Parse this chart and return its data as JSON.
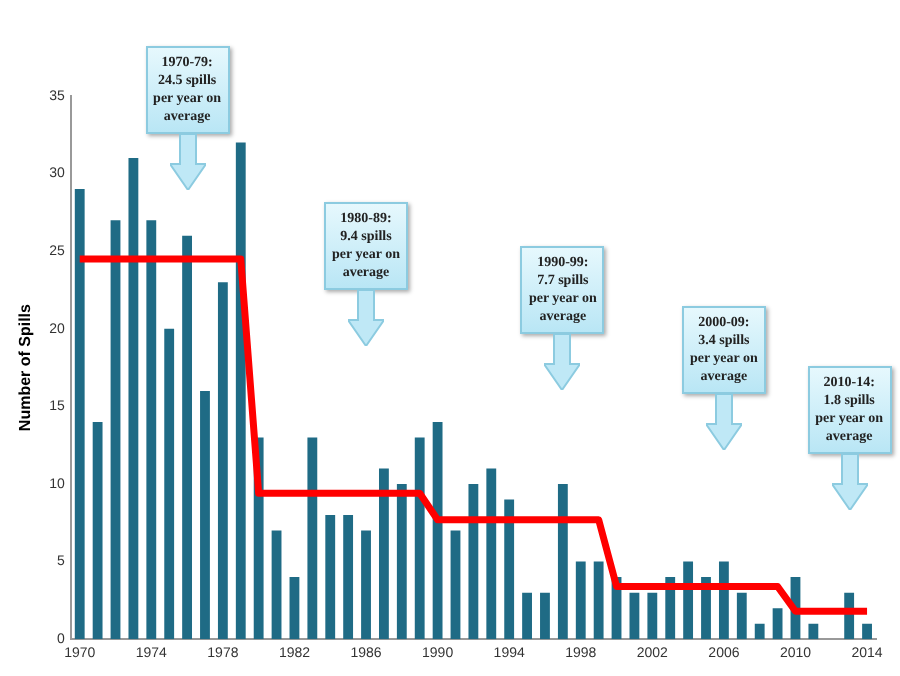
{
  "chart_data": {
    "type": "bar",
    "ylabel": "Number of Spills",
    "categories": [
      "1970",
      null,
      null,
      null,
      "1974",
      null,
      null,
      null,
      "1978",
      null,
      null,
      null,
      "1982",
      null,
      null,
      null,
      "1986",
      null,
      null,
      null,
      "1990",
      null,
      null,
      null,
      "1994",
      null,
      null,
      null,
      "1998",
      null,
      null,
      null,
      "2002",
      null,
      null,
      null,
      "2006",
      null,
      null,
      null,
      "2010",
      null,
      null,
      null,
      "2014"
    ],
    "series": [
      {
        "color": "#1f6b85",
        "values": [
          29,
          14,
          27,
          31,
          27,
          20,
          26,
          16,
          23,
          32,
          13,
          7,
          4,
          13,
          8,
          8,
          7,
          11,
          10,
          13,
          14,
          7,
          10,
          11,
          9,
          3,
          3,
          10,
          5,
          5,
          4,
          3,
          3,
          4,
          5,
          4,
          5,
          3,
          1,
          2,
          4,
          1,
          0,
          3,
          1
        ]
      },
      {
        "type": "line",
        "color": "#ff0000",
        "values": [
          24.5,
          24.5,
          24.5,
          24.5,
          24.5,
          24.5,
          24.5,
          24.5,
          24.5,
          24.5,
          9.4,
          9.4,
          9.4,
          9.4,
          9.4,
          9.4,
          9.4,
          9.4,
          9.4,
          9.4,
          7.7,
          7.7,
          7.7,
          7.7,
          7.7,
          7.7,
          7.7,
          7.7,
          7.7,
          7.7,
          3.4,
          3.4,
          3.4,
          3.4,
          3.4,
          3.4,
          3.4,
          3.4,
          3.4,
          3.4,
          1.8,
          1.8,
          1.8,
          1.8,
          1.8
        ]
      }
    ],
    "marker": "none",
    "ylim": [
      0,
      35
    ],
    "yticks": [
      0,
      5,
      10,
      15,
      20,
      25,
      30,
      35
    ],
    "grid": false,
    "legend": false,
    "annotations": [
      "1970-79:\n24.5 spills\nper year on\naverage",
      "1980-89:\n9.4 spills\nper year on\naverage",
      "1990-99:\n7.7 spills\nper year on\naverage",
      "2000-09:\n3.4 spills\nper year on\naverage",
      "2010-14:\n1.8 spills\nper year on\naverage"
    ]
  }
}
